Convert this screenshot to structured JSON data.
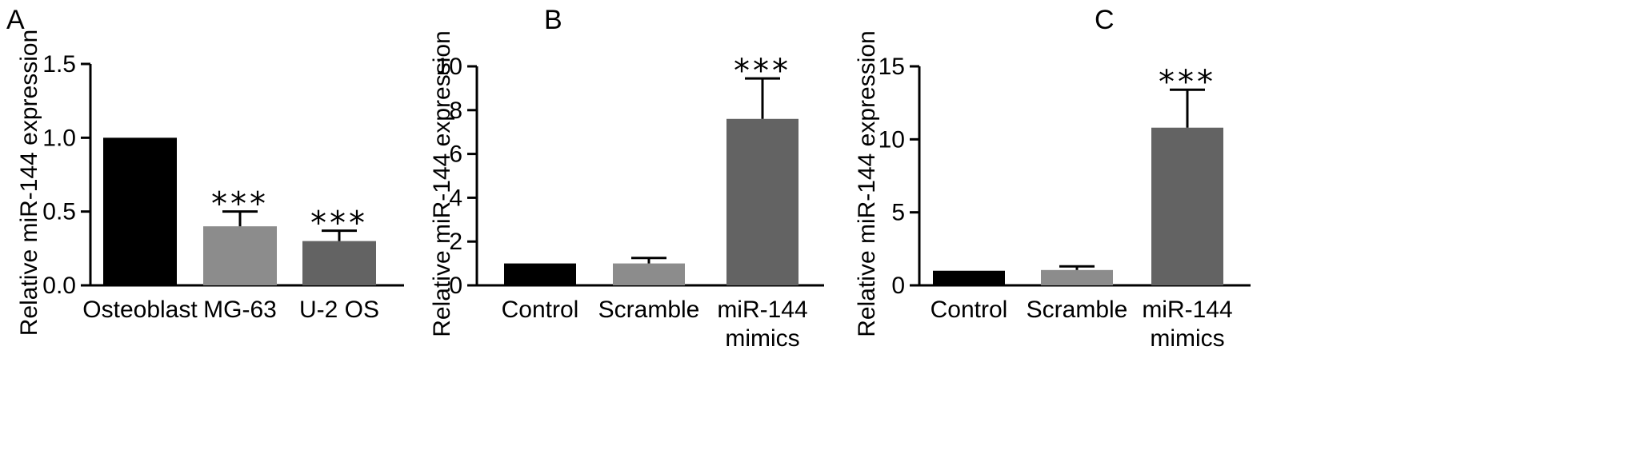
{
  "chart_data": [
    {
      "panel": "A",
      "type": "bar",
      "ylabel": "Relative miR-144 expression",
      "ylim": [
        0,
        1.5
      ],
      "yticks": [
        "0.0",
        "0.5",
        "1.0",
        "1.5"
      ],
      "ytick_values": [
        0,
        0.5,
        1.0,
        1.5
      ],
      "categories": [
        [
          "Osteoblast"
        ],
        [
          "MG-63"
        ],
        [
          "U-2 OS"
        ]
      ],
      "values": [
        1.0,
        0.4,
        0.3
      ],
      "errors": [
        0,
        0.1,
        0.07
      ],
      "significance": [
        "",
        "***",
        "***"
      ],
      "colors": [
        "#000000",
        "#8c8c8c",
        "#636363"
      ]
    },
    {
      "panel": "B",
      "type": "bar",
      "ylabel": "Relative miR-144 expression",
      "ylim": [
        0,
        10
      ],
      "yticks": [
        "0",
        "2",
        "4",
        "6",
        "8",
        "10"
      ],
      "ytick_values": [
        0,
        2,
        4,
        6,
        8,
        10
      ],
      "categories": [
        [
          "Control"
        ],
        [
          "Scramble"
        ],
        [
          "miR-144",
          "mimics"
        ]
      ],
      "values": [
        1.0,
        1.0,
        7.6
      ],
      "errors": [
        0,
        0.25,
        1.85
      ],
      "significance": [
        "",
        "",
        "***"
      ],
      "colors": [
        "#000000",
        "#8c8c8c",
        "#636363"
      ]
    },
    {
      "panel": "C",
      "type": "bar",
      "ylabel": "Relative miR-144 expression",
      "ylim": [
        0,
        15
      ],
      "yticks": [
        "0",
        "5",
        "10",
        "15"
      ],
      "ytick_values": [
        0,
        5,
        10,
        15
      ],
      "categories": [
        [
          "Control"
        ],
        [
          "Scramble"
        ],
        [
          "miR-144",
          "mimics"
        ]
      ],
      "values": [
        1.0,
        1.05,
        10.8
      ],
      "errors": [
        0,
        0.25,
        2.6
      ],
      "significance": [
        "",
        "",
        "***"
      ],
      "colors": [
        "#000000",
        "#8c8c8c",
        "#636363"
      ]
    }
  ]
}
